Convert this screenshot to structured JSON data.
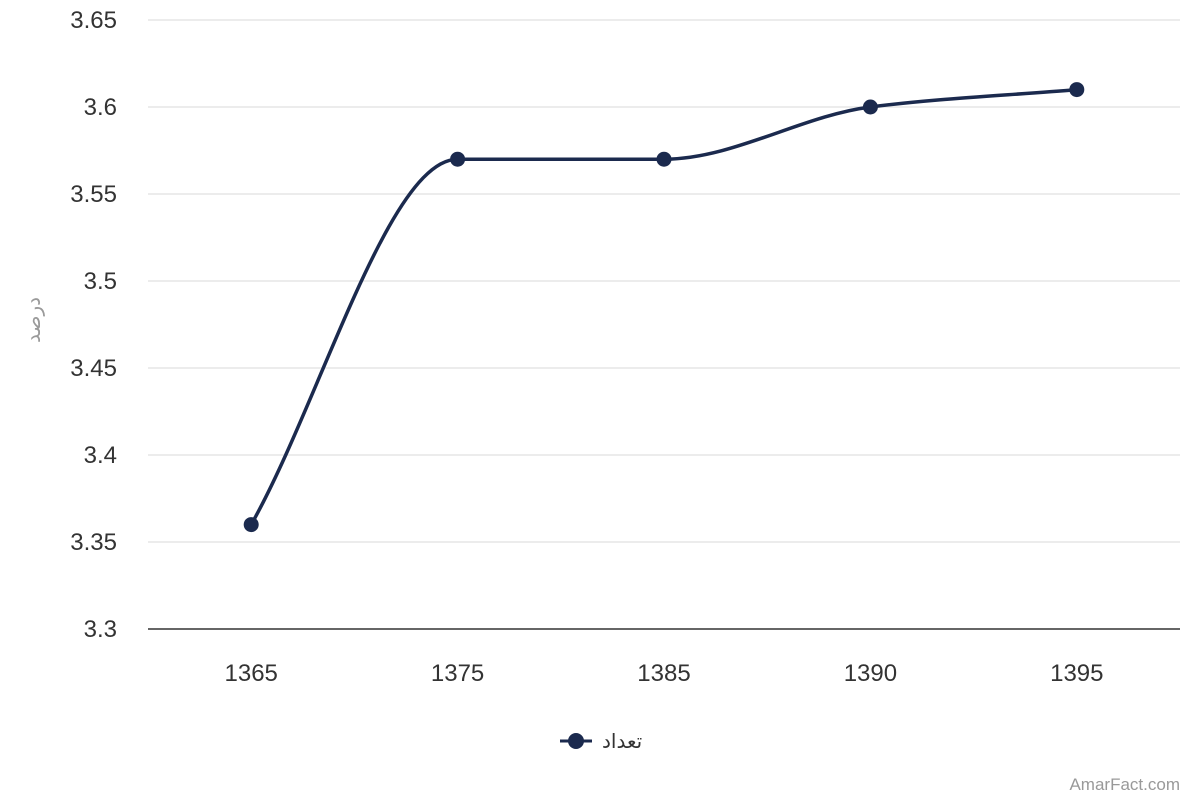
{
  "chart_data": {
    "type": "line",
    "smooth": true,
    "categories": [
      "1365",
      "1375",
      "1385",
      "1390",
      "1395"
    ],
    "series": [
      {
        "name": "تعداد",
        "values": [
          3.36,
          3.57,
          3.57,
          3.6,
          3.61
        ],
        "color": "#1b2a4e"
      }
    ],
    "ylabel": "درصد",
    "ylim": [
      3.3,
      3.65
    ],
    "yticks": [
      "3.3",
      "3.35",
      "3.4",
      "3.45",
      "3.5",
      "3.55",
      "3.6",
      "3.65"
    ],
    "grid": true,
    "legend": "bottom-center"
  },
  "credit": "AmarFact.com",
  "colors": {
    "series": "#1b2a4e",
    "grid": "#e6e6e6",
    "axis": "#333333"
  }
}
